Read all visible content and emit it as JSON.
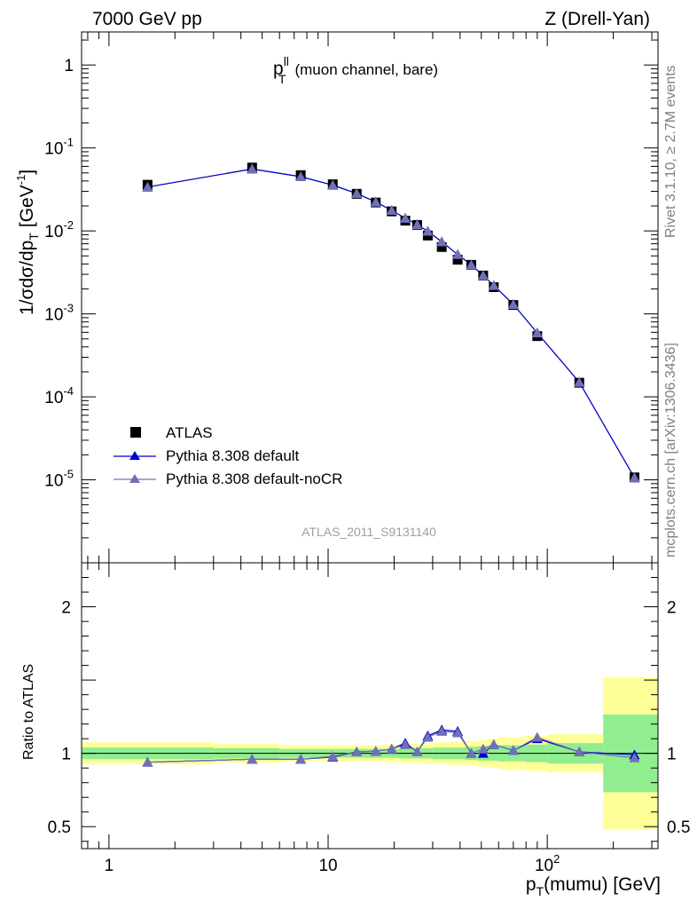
{
  "header": {
    "left": "7000 GeV pp",
    "right": "Z (Drell-Yan)"
  },
  "side": {
    "rivet": "Rivet 3.1.10, ≥ 2.7M events",
    "mcplots": "mcplots.cern.ch [arXiv:1306.3436]"
  },
  "chart_data": {
    "type": "scatter",
    "title_main": "p",
    "title_sup": "ll",
    "title_sub": "T",
    "title_rest": "(muon channel, bare)",
    "watermark": "ATLAS_2011_S9131140",
    "xlabel_main": "p",
    "xlabel_sub": "T",
    "xlabel_rest": "(mumu) [GeV]",
    "ylabel_main": "1/σdσ/dp",
    "ylabel_sub": "T",
    "ylabel_unit": "[GeV",
    "ylabel_unit_sup": "-1",
    "ylabel_close": "]",
    "ratio_ylabel": "Ratio to ATLAS",
    "x_scale": "log",
    "xlim": [
      0.75,
      320
    ],
    "ylim": [
      1e-06,
      2.5
    ],
    "ratio_ylim": [
      0.35,
      2.3
    ],
    "x_ticks": [
      {
        "value": 1,
        "label": "1"
      },
      {
        "value": 10,
        "label": "10"
      },
      {
        "value": 100,
        "label": "10",
        "sup": "2"
      }
    ],
    "y_ticks": [
      {
        "value": 1,
        "label": "1",
        "sup": ""
      },
      {
        "value": 0.1,
        "label": "10",
        "sup": "-1"
      },
      {
        "value": 0.01,
        "label": "10",
        "sup": "-2"
      },
      {
        "value": 0.001,
        "label": "10",
        "sup": "-3"
      },
      {
        "value": 0.0001,
        "label": "10",
        "sup": "-4"
      },
      {
        "value": 1e-05,
        "label": "10",
        "sup": "-5"
      }
    ],
    "ratio_ticks": [
      {
        "value": 0.5,
        "label": "0.5"
      },
      {
        "value": 1,
        "label": "1"
      },
      {
        "value": 2,
        "label": "2"
      }
    ],
    "legend_position": "bottom-left",
    "bins": [
      {
        "lo": 0.75,
        "hi": 3.0,
        "inner": 0.04,
        "outer": 0.075
      },
      {
        "lo": 3.0,
        "hi": 6.0,
        "inner": 0.035,
        "outer": 0.065
      },
      {
        "lo": 6.0,
        "hi": 9.0,
        "inner": 0.03,
        "outer": 0.055
      },
      {
        "lo": 9.0,
        "hi": 12.0,
        "inner": 0.03,
        "outer": 0.055
      },
      {
        "lo": 12.0,
        "hi": 15.0,
        "inner": 0.03,
        "outer": 0.055
      },
      {
        "lo": 15.0,
        "hi": 18.0,
        "inner": 0.03,
        "outer": 0.055
      },
      {
        "lo": 18.0,
        "hi": 21.0,
        "inner": 0.03,
        "outer": 0.06
      },
      {
        "lo": 21.0,
        "hi": 24.0,
        "inner": 0.035,
        "outer": 0.065
      },
      {
        "lo": 24.0,
        "hi": 27.0,
        "inner": 0.035,
        "outer": 0.065
      },
      {
        "lo": 27.0,
        "hi": 30.0,
        "inner": 0.035,
        "outer": 0.07
      },
      {
        "lo": 30.0,
        "hi": 36.0,
        "inner": 0.04,
        "outer": 0.075
      },
      {
        "lo": 36.0,
        "hi": 42.0,
        "inner": 0.04,
        "outer": 0.08
      },
      {
        "lo": 42.0,
        "hi": 48.0,
        "inner": 0.045,
        "outer": 0.085
      },
      {
        "lo": 48.0,
        "hi": 54.0,
        "inner": 0.05,
        "outer": 0.09
      },
      {
        "lo": 54.0,
        "hi": 60.0,
        "inner": 0.05,
        "outer": 0.1
      },
      {
        "lo": 60.0,
        "hi": 80.0,
        "inner": 0.055,
        "outer": 0.11
      },
      {
        "lo": 80.0,
        "hi": 100.0,
        "inner": 0.06,
        "outer": 0.12
      },
      {
        "lo": 100.0,
        "hi": 180.0,
        "inner": 0.07,
        "outer": 0.13
      },
      {
        "lo": 180.0,
        "hi": 320.0,
        "inner": 0.265,
        "outer": 0.52
      }
    ],
    "series": [
      {
        "name": "ATLAS",
        "marker": "square",
        "color": "#000000",
        "x": [
          1.5,
          4.5,
          7.5,
          10.5,
          13.5,
          16.5,
          19.5,
          22.5,
          25.5,
          28.5,
          33.0,
          39.0,
          45.0,
          51.0,
          57.0,
          70.0,
          90.0,
          140.0,
          250.0
        ],
        "y": [
          0.036,
          0.058,
          0.047,
          0.0365,
          0.028,
          0.022,
          0.0172,
          0.0133,
          0.0118,
          0.0088,
          0.0064,
          0.0045,
          0.0039,
          0.0029,
          0.0021,
          0.00128,
          0.00054,
          0.000148,
          1.07e-05
        ]
      },
      {
        "name": "Pythia 8.308 default",
        "marker": "triangle",
        "color": "#0000cc",
        "x": [
          1.5,
          4.5,
          7.5,
          10.5,
          13.5,
          16.5,
          19.5,
          22.5,
          25.5,
          28.5,
          33.0,
          39.0,
          45.0,
          51.0,
          57.0,
          70.0,
          90.0,
          140.0,
          250.0
        ],
        "y": [
          0.0338,
          0.0557,
          0.0451,
          0.0356,
          0.0283,
          0.0223,
          0.0177,
          0.0142,
          0.0119,
          0.0099,
          0.0074,
          0.0052,
          0.0039,
          0.0029,
          0.0022,
          0.0013,
          0.00059,
          0.00015,
          1.06e-05
        ],
        "ratio": [
          0.94,
          0.96,
          0.96,
          0.975,
          1.01,
          1.015,
          1.03,
          1.07,
          1.01,
          1.12,
          1.16,
          1.15,
          1.0,
          1.0,
          1.06,
          1.02,
          1.1,
          1.01,
          0.99
        ]
      },
      {
        "name": "Pythia 8.308 default-noCR",
        "marker": "triangle",
        "color": "#7070b8",
        "x": [
          1.5,
          4.5,
          7.5,
          10.5,
          13.5,
          16.5,
          19.5,
          22.5,
          25.5,
          28.5,
          33.0,
          39.0,
          45.0,
          51.0,
          57.0,
          70.0,
          90.0,
          140.0,
          250.0
        ],
        "y": [
          0.0338,
          0.0557,
          0.0451,
          0.0356,
          0.0283,
          0.0223,
          0.0177,
          0.0142,
          0.0119,
          0.0099,
          0.0074,
          0.0052,
          0.0039,
          0.0029,
          0.0022,
          0.0013,
          0.00059,
          0.00015,
          1.06e-05
        ],
        "ratio": [
          0.94,
          0.96,
          0.96,
          0.98,
          1.01,
          1.015,
          1.03,
          1.06,
          1.01,
          1.11,
          1.15,
          1.14,
          1.0,
          1.03,
          1.06,
          1.02,
          1.11,
          1.01,
          0.97
        ]
      }
    ]
  }
}
